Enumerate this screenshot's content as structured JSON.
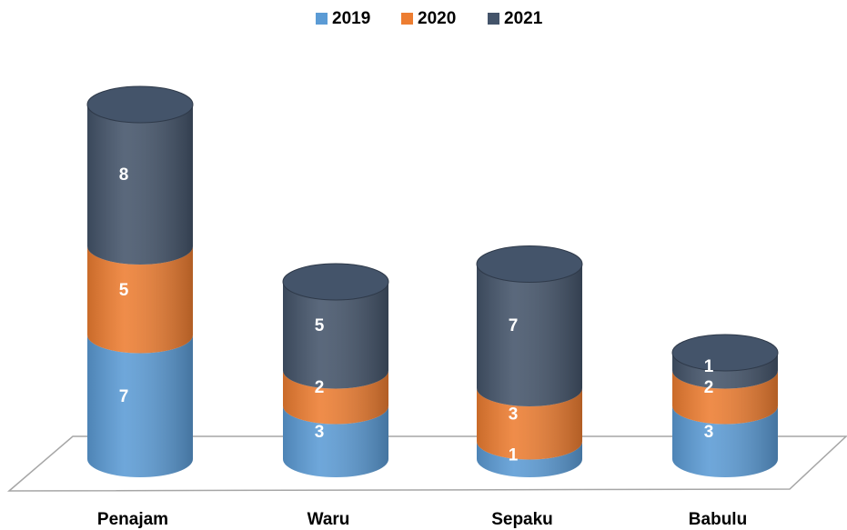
{
  "chart_data": {
    "type": "bar",
    "stacked": true,
    "shape": "cylinder",
    "categories": [
      "Penajam",
      "Waru",
      "Sepaku",
      "Babulu"
    ],
    "series": [
      {
        "name": "2019",
        "color": "#5b9bd5",
        "values": [
          7,
          3,
          1,
          3
        ]
      },
      {
        "name": "2020",
        "color": "#ed7d31",
        "values": [
          5,
          2,
          3,
          2
        ]
      },
      {
        "name": "2021",
        "color": "#44546a",
        "values": [
          8,
          5,
          7,
          1
        ]
      }
    ],
    "legend": "top"
  }
}
